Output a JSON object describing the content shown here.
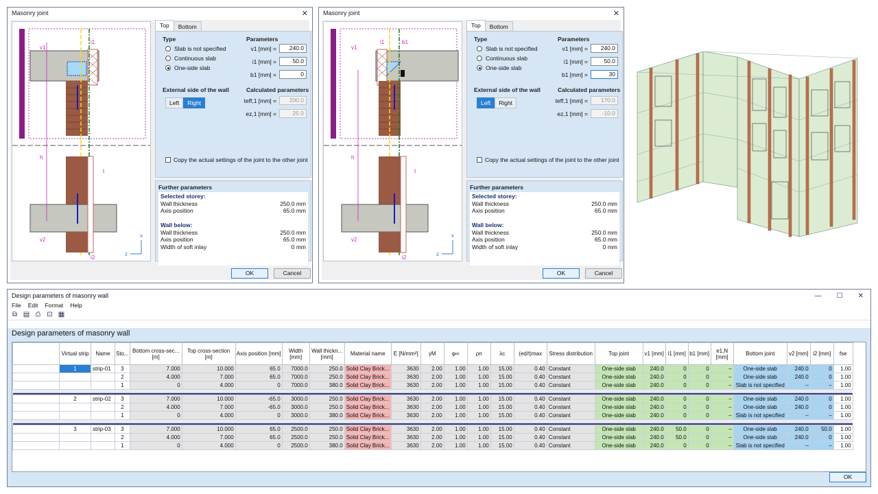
{
  "dialogs": [
    {
      "title": "Masonry joint",
      "tabs": [
        "Top",
        "Bottom"
      ],
      "type_label": "Type",
      "type_options": [
        "Slab is not specified",
        "Continuous slab",
        "One-side slab"
      ],
      "selected_type": 2,
      "params_label": "Parameters",
      "params": [
        {
          "label": "v1 [mm] =",
          "value": "240.0"
        },
        {
          "label": "i1 [mm] =",
          "value": "50.0"
        },
        {
          "label": "b1 [mm] =",
          "value": "0"
        }
      ],
      "ext_label": "External side of the wall",
      "ext_options": [
        "Left",
        "Right"
      ],
      "ext_selected": 1,
      "calc_label": "Calculated parameters",
      "calc": [
        {
          "label": "teff,1 [mm] =",
          "value": "200.0"
        },
        {
          "label": "ez,1 [mm] =",
          "value": "25.0"
        }
      ],
      "copy_label": "Copy the actual settings of the joint to the other joint",
      "further_label": "Further parameters",
      "selected_storey": "Selected storey:",
      "wall_below": "Wall below:",
      "rows_sel": [
        {
          "k": "Wall thickness",
          "v": "250.0 mm"
        },
        {
          "k": "Axis position",
          "v": "65.0 mm"
        }
      ],
      "rows_below": [
        {
          "k": "Wall thickness",
          "v": "250.0 mm"
        },
        {
          "k": "Axis position",
          "v": "65.0 mm"
        },
        {
          "k": "Width of soft inlay",
          "v": "0 mm"
        }
      ],
      "ok": "OK",
      "cancel": "Cancel",
      "drawing_labels": {
        "v1": "v1",
        "i1": "i1",
        "h": "h",
        "t": "t",
        "v2": "v2",
        "i2": "i2",
        "x": "x",
        "z": "z"
      }
    },
    {
      "title": "Masonry joint",
      "tabs": [
        "Top",
        "Bottom"
      ],
      "type_label": "Type",
      "type_options": [
        "Slab is not specified",
        "Continuous slab",
        "One-side slab"
      ],
      "selected_type": 2,
      "params_label": "Parameters",
      "params": [
        {
          "label": "v1 [mm] =",
          "value": "240.0"
        },
        {
          "label": "i1 [mm] =",
          "value": "50.0"
        },
        {
          "label": "b1 [mm] =",
          "value": "30"
        }
      ],
      "ext_label": "External side of the wall",
      "ext_options": [
        "Left",
        "Right"
      ],
      "ext_selected": 0,
      "calc_label": "Calculated parameters",
      "calc": [
        {
          "label": "teff,1 [mm] =",
          "value": "170.0"
        },
        {
          "label": "ez,1 [mm] =",
          "value": "-10.0"
        }
      ],
      "copy_label": "Copy the actual settings of the joint to the other joint",
      "further_label": "Further parameters",
      "selected_storey": "Selected storey:",
      "wall_below": "Wall below:",
      "rows_sel": [
        {
          "k": "Wall thickness",
          "v": "250.0 mm"
        },
        {
          "k": "Axis position",
          "v": "65.0 mm"
        }
      ],
      "rows_below": [
        {
          "k": "Wall thickness",
          "v": "250.0 mm"
        },
        {
          "k": "Axis position",
          "v": "65.0 mm"
        },
        {
          "k": "Width of soft inlay",
          "v": "0 mm"
        }
      ],
      "ok": "OK",
      "cancel": "Cancel",
      "drawing_labels": {
        "v1": "v1",
        "i1": "i1",
        "b1": "b1",
        "h": "h",
        "t": "t",
        "v2": "v2",
        "i2": "i2",
        "x": "x",
        "z": "z"
      }
    }
  ],
  "main": {
    "title": "Design parameters of masonry wall",
    "menu": [
      "File",
      "Edit",
      "Format",
      "Help"
    ],
    "heading": "Design parameters of masonry wall",
    "columns": [
      "Virtual strip",
      "Name",
      "Sto...",
      "Bottom cross-sec... [m]",
      "Top cross-section [m]",
      "Axis position [mm]",
      "Width [mm]",
      "Wall thickn... [mm]",
      "Material name",
      "E [N/mm²]",
      "γM",
      "φ∞",
      "ρn",
      "λc",
      "(ed/t)max",
      "Stress distribution",
      "Top joint",
      "v1 [mm]",
      "i1 [mm]",
      "b1 [mm]",
      "e1,N [mm]",
      "Bottom joint",
      "v2 [mm]",
      "i2 [mm]",
      "fse"
    ],
    "groups": [
      {
        "strip": "1",
        "name": "strip-01",
        "rows": [
          [
            "3",
            "7.000",
            "10.000",
            "65.0",
            "7000.0",
            "250.0",
            "Solid Clay Brick...",
            "3630",
            "2.00",
            "1.00",
            "1.00",
            "15.00",
            "0.40",
            "Constant",
            "One-side slab",
            "240.0",
            "0",
            "0",
            "–",
            "One-side slab",
            "240.0",
            "0",
            "1.00"
          ],
          [
            "2",
            "4.000",
            "7.000",
            "65.0",
            "7000.0",
            "250.0",
            "Solid Clay Brick...",
            "3630",
            "2.00",
            "1.00",
            "1.00",
            "15.00",
            "0.40",
            "Constant",
            "One-side slab",
            "240.0",
            "0",
            "0",
            "–",
            "One-side slab",
            "240.0",
            "0",
            "1.00"
          ],
          [
            "1",
            "0",
            "4.000",
            "0",
            "7000.0",
            "380.0",
            "Solid Clay Brick...",
            "3630",
            "2.00",
            "1.00",
            "1.00",
            "15.00",
            "0.40",
            "Constant",
            "One-side slab",
            "240.0",
            "0",
            "0",
            "–",
            "Slab is not specified",
            "–",
            "–",
            "1.00"
          ]
        ]
      },
      {
        "strip": "2",
        "name": "strip-02",
        "rows": [
          [
            "3",
            "7.000",
            "10.000",
            "-65.0",
            "3000.0",
            "250.0",
            "Solid Clay Brick...",
            "3630",
            "2.00",
            "1.00",
            "1.00",
            "15.00",
            "0.40",
            "Constant",
            "One-side slab",
            "240.0",
            "0",
            "0",
            "–",
            "One-side slab",
            "240.0",
            "0",
            "1.00"
          ],
          [
            "2",
            "4.000",
            "7.000",
            "-65.0",
            "3000.0",
            "250.0",
            "Solid Clay Brick...",
            "3630",
            "2.00",
            "1.00",
            "1.00",
            "15.00",
            "0.40",
            "Constant",
            "One-side slab",
            "240.0",
            "0",
            "0",
            "–",
            "One-side slab",
            "240.0",
            "0",
            "1.00"
          ],
          [
            "1",
            "0",
            "4.000",
            "0",
            "3000.0",
            "380.0",
            "Solid Clay Brick...",
            "3630",
            "2.00",
            "1.00",
            "1.00",
            "15.00",
            "0.40",
            "Constant",
            "One-side slab",
            "240.0",
            "0",
            "0",
            "–",
            "Slab is not specified",
            "–",
            "–",
            "1.00"
          ]
        ]
      },
      {
        "strip": "3",
        "name": "strip-03",
        "rows": [
          [
            "3",
            "7.000",
            "10.000",
            "65.0",
            "2500.0",
            "250.0",
            "Solid Clay Brick...",
            "3630",
            "2.00",
            "1.00",
            "1.00",
            "15.00",
            "0.40",
            "Constant",
            "One-side slab",
            "240.0",
            "50.0",
            "0",
            "–",
            "One-side slab",
            "240.0",
            "50.0",
            "1.00"
          ],
          [
            "2",
            "4.000",
            "7.000",
            "65.0",
            "2500.0",
            "250.0",
            "Solid Clay Brick...",
            "3630",
            "2.00",
            "1.00",
            "1.00",
            "15.00",
            "0.40",
            "Constant",
            "One-side slab",
            "240.0",
            "50.0",
            "0",
            "–",
            "One-side slab",
            "240.0",
            "0",
            "1.00"
          ],
          [
            "1",
            "0",
            "4.000",
            "0",
            "2500.0",
            "380.0",
            "Solid Clay Brick...",
            "3630",
            "2.00",
            "1.00",
            "1.00",
            "15.00",
            "0.40",
            "Constant",
            "One-side slab",
            "240.0",
            "0",
            "0",
            "–",
            "Slab is not specified",
            "–",
            "–",
            "1.00"
          ]
        ]
      }
    ],
    "ok": "OK"
  },
  "colors": {
    "accent": "#2a7fd4",
    "panel": "#d7e6f4",
    "material": "#f4b4b4",
    "topjoint": "#c3e6b2",
    "bottomjoint": "#a8d3f1"
  }
}
